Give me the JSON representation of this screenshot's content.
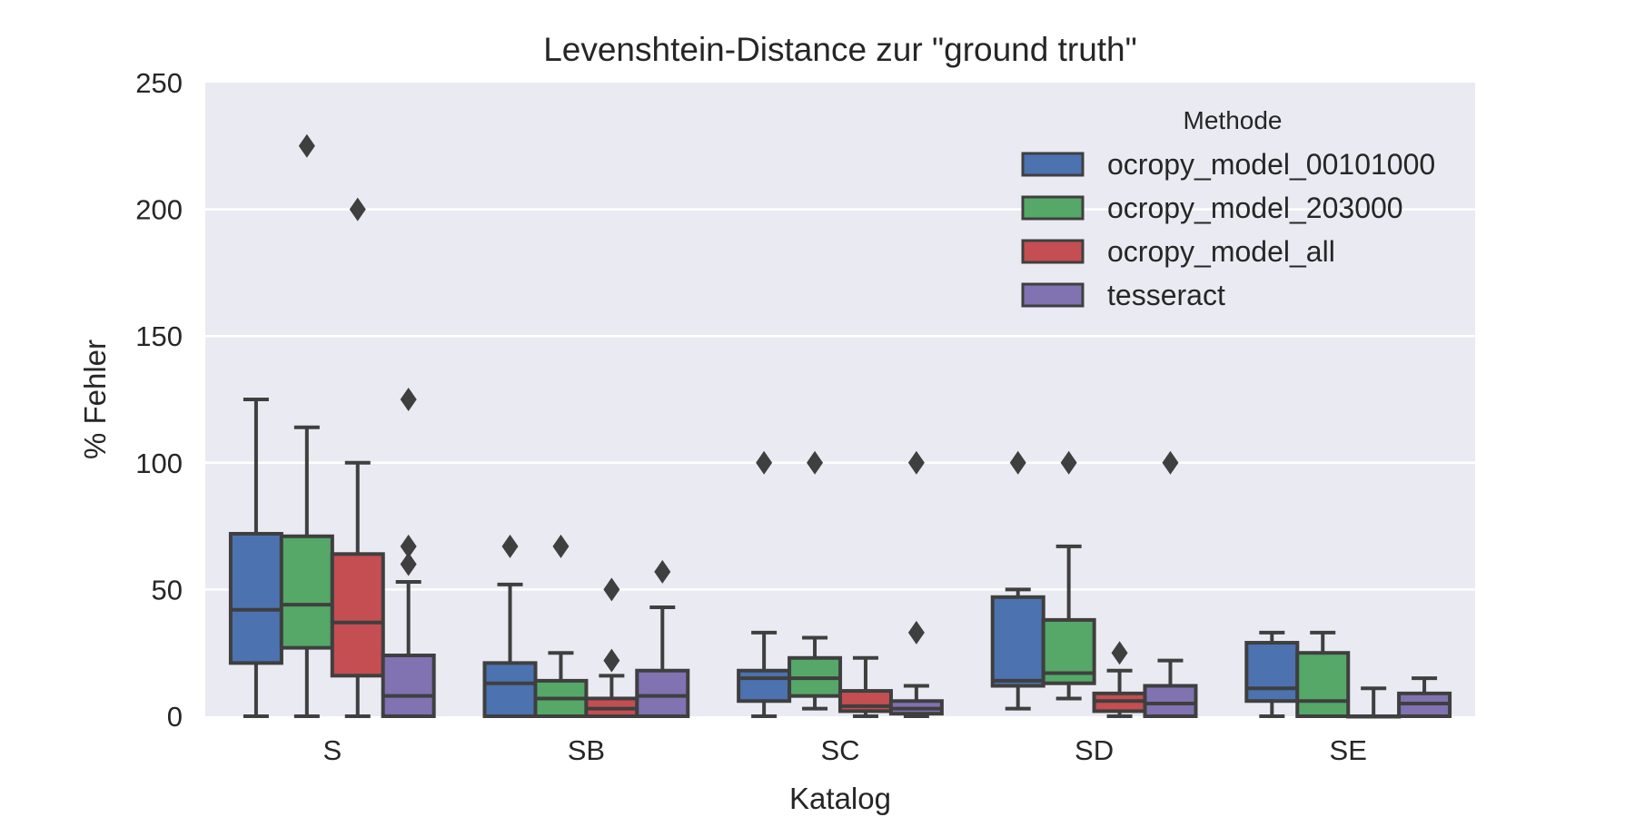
{
  "chart_data": {
    "type": "box",
    "title": "Levenshtein-Distance zur \"ground truth\"",
    "xlabel": "Katalog",
    "ylabel": "% Fehler",
    "ylim": [
      0,
      250
    ],
    "yticks": [
      0,
      50,
      100,
      150,
      200,
      250
    ],
    "categories": [
      "S",
      "SB",
      "SC",
      "SD",
      "SE"
    ],
    "grid": true,
    "legend": {
      "title": "Methode",
      "placement": "top-right"
    },
    "series": [
      {
        "name": "ocropy_model_00101000",
        "color": "#4c72b0",
        "boxes": [
          {
            "whislo": 0,
            "q1": 21,
            "med": 42,
            "q3": 72,
            "whishi": 125,
            "fliers": []
          },
          {
            "whislo": 0,
            "q1": 0,
            "med": 13,
            "q3": 21,
            "whishi": 52,
            "fliers": [
              67
            ]
          },
          {
            "whislo": 0,
            "q1": 6,
            "med": 15,
            "q3": 18,
            "whishi": 33,
            "fliers": [
              100
            ]
          },
          {
            "whislo": 3,
            "q1": 12,
            "med": 14,
            "q3": 47,
            "whishi": 50,
            "fliers": [
              100
            ]
          },
          {
            "whislo": 0,
            "q1": 6,
            "med": 11,
            "q3": 29,
            "whishi": 33,
            "fliers": []
          }
        ]
      },
      {
        "name": "ocropy_model_203000",
        "color": "#55a868",
        "boxes": [
          {
            "whislo": 0,
            "q1": 27,
            "med": 44,
            "q3": 71,
            "whishi": 114,
            "fliers": [
              225
            ]
          },
          {
            "whislo": 0,
            "q1": 0,
            "med": 7,
            "q3": 14,
            "whishi": 25,
            "fliers": [
              67
            ]
          },
          {
            "whislo": 3,
            "q1": 8,
            "med": 15,
            "q3": 23,
            "whishi": 31,
            "fliers": [
              100
            ]
          },
          {
            "whislo": 7,
            "q1": 13,
            "med": 17,
            "q3": 38,
            "whishi": 67,
            "fliers": [
              100
            ]
          },
          {
            "whislo": 0,
            "q1": 0,
            "med": 6,
            "q3": 25,
            "whishi": 33,
            "fliers": []
          }
        ]
      },
      {
        "name": "ocropy_model_all",
        "color": "#c44e52",
        "boxes": [
          {
            "whislo": 0,
            "q1": 16,
            "med": 37,
            "q3": 64,
            "whishi": 100,
            "fliers": [
              200
            ]
          },
          {
            "whislo": 0,
            "q1": 0,
            "med": 3,
            "q3": 7,
            "whishi": 16,
            "fliers": [
              22,
              50
            ]
          },
          {
            "whislo": 0,
            "q1": 2,
            "med": 4,
            "q3": 10,
            "whishi": 23,
            "fliers": []
          },
          {
            "whislo": 0,
            "q1": 2,
            "med": 6,
            "q3": 9,
            "whishi": 18,
            "fliers": [
              25
            ]
          },
          {
            "whislo": 0,
            "q1": 0,
            "med": 0,
            "q3": 0,
            "whishi": 11,
            "fliers": []
          }
        ]
      },
      {
        "name": "tesseract",
        "color": "#8172b2",
        "boxes": [
          {
            "whislo": 0,
            "q1": 0,
            "med": 8,
            "q3": 24,
            "whishi": 53,
            "fliers": [
              60,
              67,
              125
            ]
          },
          {
            "whislo": 0,
            "q1": 0,
            "med": 8,
            "q3": 18,
            "whishi": 43,
            "fliers": [
              57
            ]
          },
          {
            "whislo": 0,
            "q1": 1,
            "med": 3,
            "q3": 6,
            "whishi": 12,
            "fliers": [
              33,
              100
            ]
          },
          {
            "whislo": 0,
            "q1": 0,
            "med": 5,
            "q3": 12,
            "whishi": 22,
            "fliers": [
              100
            ]
          },
          {
            "whislo": 0,
            "q1": 0,
            "med": 5,
            "q3": 9,
            "whishi": 15,
            "fliers": []
          }
        ]
      }
    ]
  }
}
